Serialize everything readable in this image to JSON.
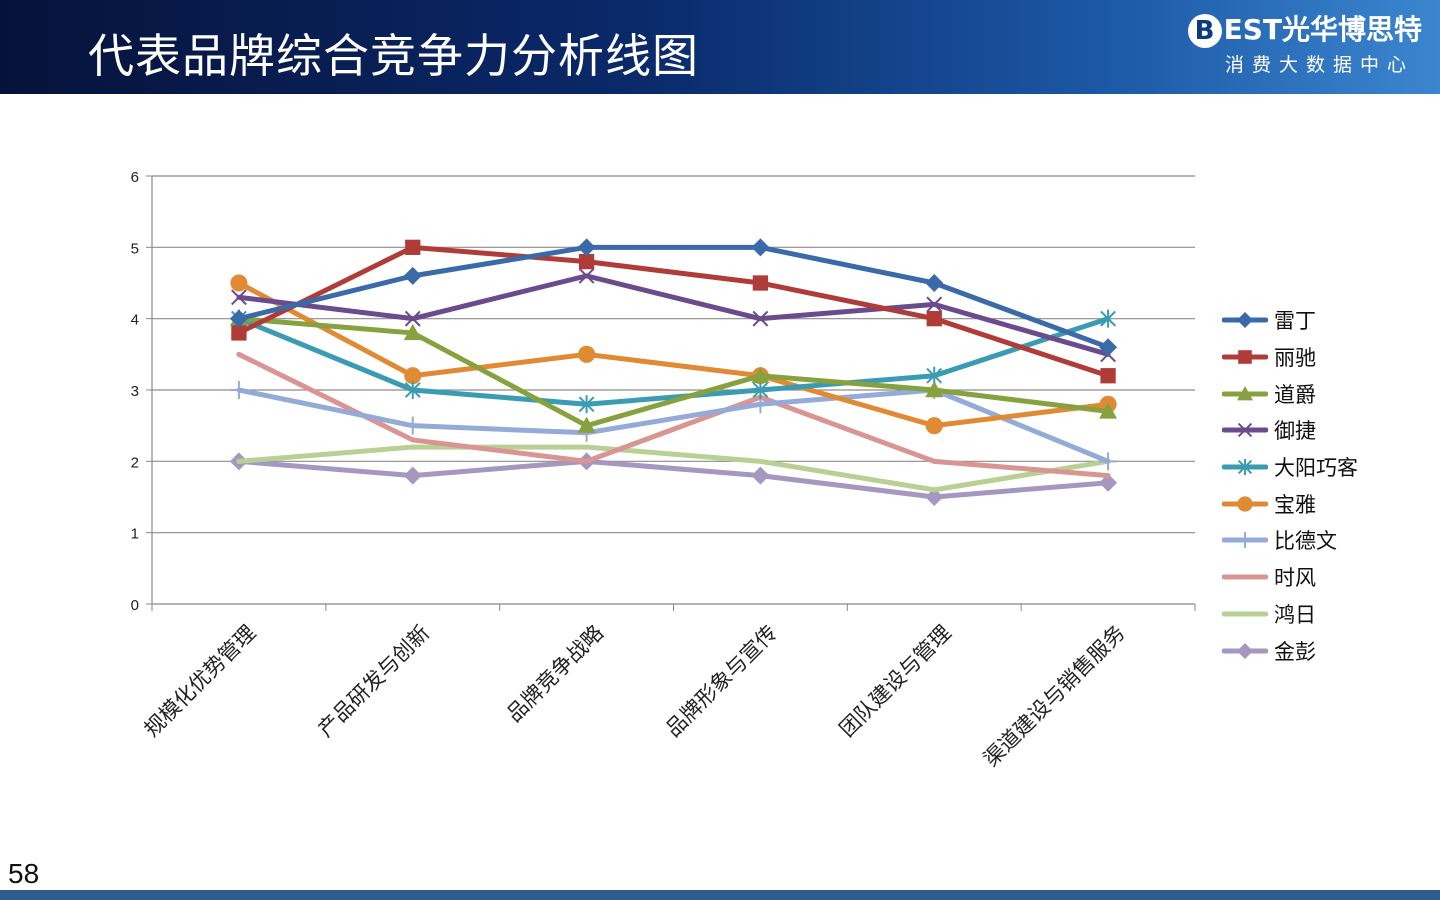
{
  "page": {
    "title": "代表品牌综合竞争力分析线图",
    "logo_text": "EST光华博思特",
    "logo_letter": "B",
    "logo_subtitle": "消费大数据中心",
    "page_number": "58"
  },
  "chart_data": {
    "type": "line",
    "title": "",
    "xlabel": "",
    "ylabel": "",
    "ylim": [
      0,
      6
    ],
    "yticks": [
      "0",
      "1",
      "2",
      "3",
      "4",
      "5",
      "6"
    ],
    "grid": true,
    "legend_position": "right",
    "categories": [
      "规模化优势管理",
      "产品研发与创新",
      "品牌竞争战略",
      "品牌形象与宣传",
      "团队建设与管理",
      "渠道建设与销售服务"
    ],
    "series": [
      {
        "name": "雷丁",
        "color": "#3a6aa8",
        "marker": "diamond",
        "values": [
          4.0,
          4.6,
          5.0,
          5.0,
          4.5,
          3.6
        ]
      },
      {
        "name": "丽驰",
        "color": "#b03c3a",
        "marker": "square",
        "values": [
          3.8,
          5.0,
          4.8,
          4.5,
          4.0,
          3.2
        ]
      },
      {
        "name": "道爵",
        "color": "#86a13e",
        "marker": "triangle",
        "values": [
          4.0,
          3.8,
          2.5,
          3.2,
          3.0,
          2.7
        ]
      },
      {
        "name": "御捷",
        "color": "#6a4b8c",
        "marker": "x",
        "values": [
          4.3,
          4.0,
          4.6,
          4.0,
          4.2,
          3.5
        ]
      },
      {
        "name": "大阳巧客",
        "color": "#3a9cb2",
        "marker": "star",
        "values": [
          4.0,
          3.0,
          2.8,
          3.0,
          3.2,
          4.0
        ]
      },
      {
        "name": "宝雅",
        "color": "#e08a34",
        "marker": "circle",
        "values": [
          4.5,
          3.2,
          3.5,
          3.2,
          2.5,
          2.8
        ]
      },
      {
        "name": "比德文",
        "color": "#93abd6",
        "marker": "plus",
        "values": [
          3.0,
          2.5,
          2.4,
          2.8,
          3.0,
          2.0
        ]
      },
      {
        "name": "时风",
        "color": "#d99592",
        "marker": "none",
        "values": [
          3.5,
          2.3,
          2.0,
          2.9,
          2.0,
          1.8
        ]
      },
      {
        "name": "鸿日",
        "color": "#b9d095",
        "marker": "none",
        "values": [
          2.0,
          2.2,
          2.2,
          2.0,
          1.6,
          2.0
        ]
      },
      {
        "name": "金彭",
        "color": "#a597c0",
        "marker": "diamond",
        "values": [
          2.0,
          1.8,
          2.0,
          1.8,
          1.5,
          1.7
        ]
      }
    ]
  }
}
